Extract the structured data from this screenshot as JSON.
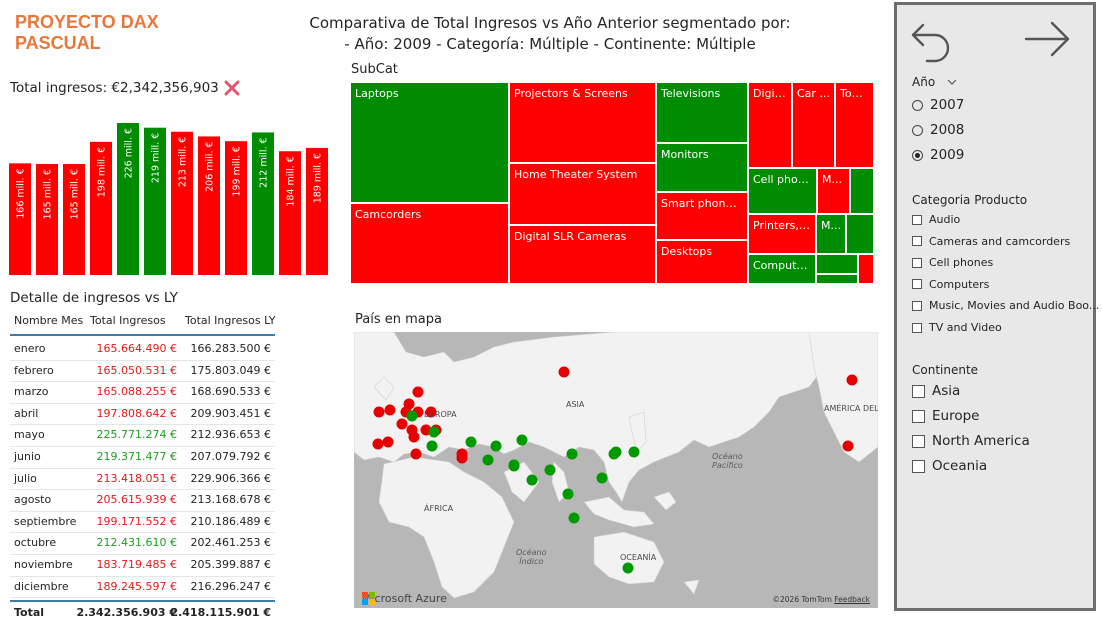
{
  "brand": {
    "line1": "PROYECTO DAX",
    "line2": "PASCUAL"
  },
  "header": {
    "title_line1": "Comparativa de Total Ingresos vs Año Anterior segmentado por:",
    "title_line2": "- Año: 2009 - Categoría: Múltiple - Continente: Múltiple"
  },
  "total": {
    "label": "Total ingresos: €2,342,356,903",
    "status_icon": "x-mark-icon",
    "status_color": "#e8536a"
  },
  "chart_data": {
    "type": "bar",
    "categories": [
      "enero",
      "febrero",
      "marzo",
      "abril",
      "mayo",
      "junio",
      "julio",
      "agosto",
      "septiembre",
      "octubre",
      "noviembre",
      "diciembre"
    ],
    "values": [
      166,
      165,
      165,
      198,
      226,
      219,
      213,
      206,
      199,
      212,
      184,
      189
    ],
    "data_labels": [
      "166 mill. €",
      "165 mill. €",
      "165 mill. €",
      "198 mill. €",
      "226 mill. €",
      "219 mill. €",
      "213 mill. €",
      "206 mill. €",
      "199 mill. €",
      "212 mill. €",
      "184 mill. €",
      "189 mill. €"
    ],
    "colors": [
      "#ff0000",
      "#ff0000",
      "#ff0000",
      "#ff0000",
      "#008c00",
      "#008c00",
      "#ff0000",
      "#ff0000",
      "#ff0000",
      "#008c00",
      "#ff0000",
      "#ff0000"
    ],
    "ylim": [
      0,
      226
    ]
  },
  "detail": {
    "title": "Detalle de ingresos vs LY",
    "headers": [
      "Nombre Mes",
      "Total Ingresos",
      "Total Ingresos LY"
    ],
    "rows": [
      {
        "mes": "enero",
        "ing": "165.664.490 €",
        "ly": "166.283.500 €",
        "status": "neg"
      },
      {
        "mes": "febrero",
        "ing": "165.050.531 €",
        "ly": "175.803.049 €",
        "status": "neg"
      },
      {
        "mes": "marzo",
        "ing": "165.088.255 €",
        "ly": "168.690.533 €",
        "status": "neg"
      },
      {
        "mes": "abril",
        "ing": "197.808.642 €",
        "ly": "209.903.451 €",
        "status": "neg"
      },
      {
        "mes": "mayo",
        "ing": "225.771.274 €",
        "ly": "212.936.653 €",
        "status": "pos"
      },
      {
        "mes": "junio",
        "ing": "219.371.477 €",
        "ly": "207.079.792 €",
        "status": "pos"
      },
      {
        "mes": "julio",
        "ing": "213.418.051 €",
        "ly": "229.906.366 €",
        "status": "neg"
      },
      {
        "mes": "agosto",
        "ing": "205.615.939 €",
        "ly": "213.168.678 €",
        "status": "neg"
      },
      {
        "mes": "septiembre",
        "ing": "199.171.552 €",
        "ly": "210.186.489 €",
        "status": "neg"
      },
      {
        "mes": "octubre",
        "ing": "212.431.610 €",
        "ly": "202.461.253 €",
        "status": "pos"
      },
      {
        "mes": "noviembre",
        "ing": "183.719.485 €",
        "ly": "205.399.887 €",
        "status": "neg"
      },
      {
        "mes": "diciembre",
        "ing": "189.245.597 €",
        "ly": "216.296.247 €",
        "status": "neg"
      }
    ],
    "total": {
      "label": "Total",
      "ing": "2.342.356.903 €",
      "ly": "2.418.115.901 €"
    }
  },
  "subcat": {
    "title": "SubCat",
    "tiles": [
      {
        "label": "Laptops",
        "color": "green"
      },
      {
        "label": "Camcorders",
        "color": "red"
      },
      {
        "label": "Projectors & Screens",
        "color": "red"
      },
      {
        "label": "Home Theater System",
        "color": "red"
      },
      {
        "label": "Digital SLR Cameras",
        "color": "red"
      },
      {
        "label": "Televisions",
        "color": "green"
      },
      {
        "label": "Monitors",
        "color": "green"
      },
      {
        "label": "Smart phones ...",
        "color": "red"
      },
      {
        "label": "Desktops",
        "color": "red"
      },
      {
        "label": "Digit...",
        "color": "red"
      },
      {
        "label": "Car ...",
        "color": "red"
      },
      {
        "label": "Tou...",
        "color": "red"
      },
      {
        "label": "Cell phon...",
        "color": "green"
      },
      {
        "label": "M...",
        "color": "red"
      },
      {
        "label": "",
        "color": "green"
      },
      {
        "label": "Printers, S...",
        "color": "red"
      },
      {
        "label": "M...",
        "color": "green"
      },
      {
        "label": "",
        "color": "green"
      },
      {
        "label": "Computer...",
        "color": "green"
      },
      {
        "label": "",
        "color": "green"
      },
      {
        "label": "",
        "color": "green"
      },
      {
        "label": "",
        "color": "red"
      }
    ]
  },
  "map": {
    "title": "País en mapa",
    "labels": {
      "europe": "EUROPA",
      "asia": "ASIA",
      "africa": "ÁFRICA",
      "america": "AMÉRICA DEL NO",
      "pacific": "Océano\nPacífico",
      "indian": "Océano\nÍndico",
      "oceania": "OCEANÍA"
    },
    "provider": "Microsoft Azure",
    "credit": "©2026 TomTom",
    "feedback": "Feedback"
  },
  "filters": {
    "back_icon": "undo-arrow-icon",
    "forward_icon": "right-arrow-icon",
    "year": {
      "title": "Año",
      "options": [
        {
          "label": "2007",
          "selected": false
        },
        {
          "label": "2008",
          "selected": false
        },
        {
          "label": "2009",
          "selected": true
        }
      ]
    },
    "category": {
      "title": "Categoria Producto",
      "options": [
        "Audio",
        "Cameras and camcorders",
        "Cell phones",
        "Computers",
        "Music, Movies and Audio Boo...",
        "TV and Video"
      ]
    },
    "continent": {
      "title": "Continente",
      "options": [
        "Asia",
        "Europe",
        "North America",
        "Oceania"
      ]
    }
  }
}
